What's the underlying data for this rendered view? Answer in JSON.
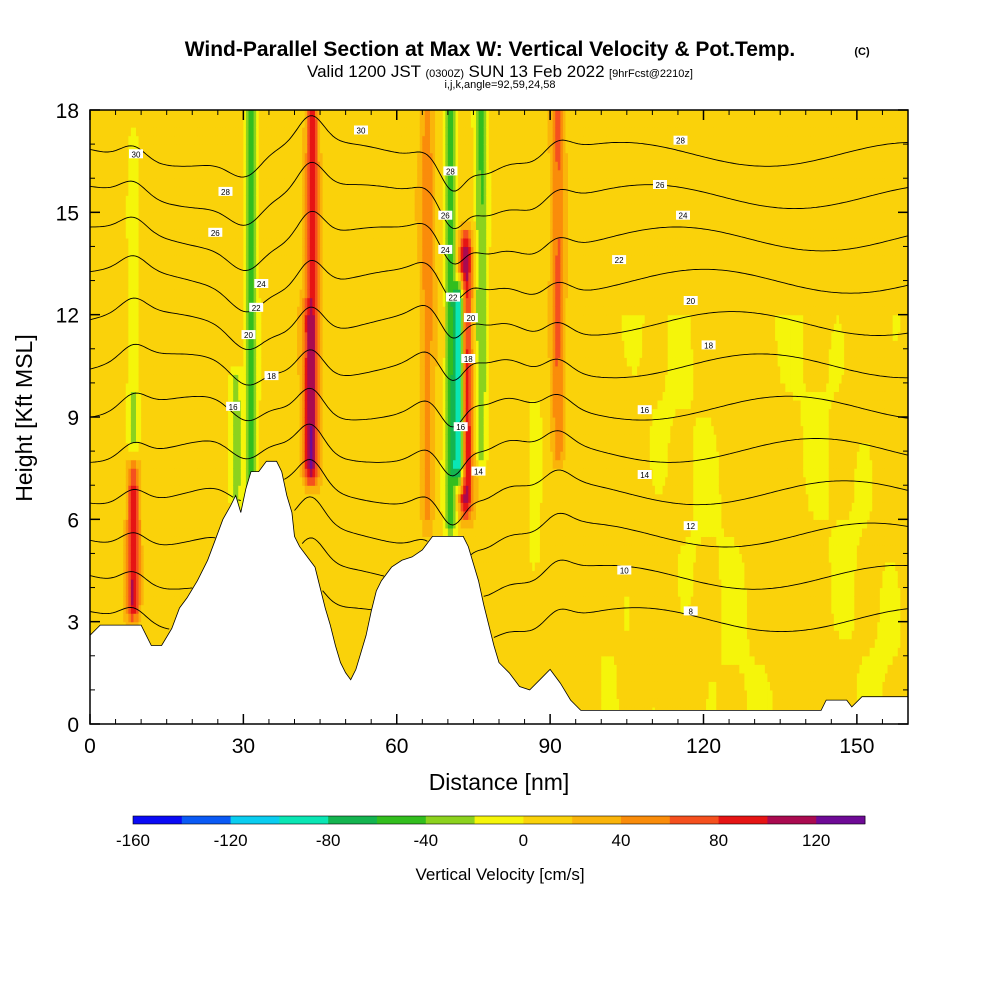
{
  "title": "Wind-Parallel Section at Max W: Vertical Velocity & Pot.Temp.",
  "title_tag": "(C)",
  "subtitle_prefix": "Valid 1200 JST",
  "subtitle_utc": "(0300Z)",
  "subtitle_date": "SUN 13 Feb 2022",
  "subtitle_fcst": "[9hrFcst@2210z]",
  "subtitle_line2": "i,j,k,angle=92,59,24,58",
  "chart_data": {
    "type": "heatmap",
    "xlabel": "Distance [nm]",
    "ylabel": "Height [Kft MSL]",
    "xlim": [
      0,
      160
    ],
    "ylim": [
      0,
      18
    ],
    "x_ticks": [
      0,
      30,
      60,
      90,
      120,
      150
    ],
    "y_ticks": [
      0,
      3,
      6,
      9,
      12,
      15,
      18
    ],
    "colorbar": {
      "label": "Vertical Velocity [cm/s]",
      "range": [
        -160,
        140
      ],
      "step": 20,
      "tick_values": [
        -160,
        -120,
        -80,
        -40,
        0,
        40,
        80,
        120
      ],
      "colors": [
        "#0a0af5",
        "#0a5af5",
        "#0acdf0",
        "#0ae6b4",
        "#14b450",
        "#32be1e",
        "#8cd21e",
        "#f5f50a",
        "#fad20a",
        "#fab40a",
        "#fa8c0a",
        "#f5501e",
        "#e61414",
        "#aa0a50",
        "#6e0a96"
      ]
    },
    "background_value": 10,
    "updraft_bands": [
      {
        "x": 8.5,
        "y_bottom": 3.5,
        "y_top": 7.5,
        "peak": 90
      },
      {
        "x": 43.5,
        "y_bottom": 7.5,
        "y_top": 18,
        "peak": 80
      },
      {
        "x": 73.5,
        "y_bottom": 6.5,
        "y_top": 14,
        "peak": 100
      },
      {
        "x": 91.5,
        "y_bottom": 8,
        "y_top": 18,
        "peak": 50
      },
      {
        "x": 42.5,
        "y_bottom": 7.5,
        "y_top": 12,
        "peak": 40
      },
      {
        "x": 66,
        "y_bottom": 6,
        "y_top": 18,
        "peak": 40
      }
    ],
    "downdraft_bands": [
      {
        "x": 31.5,
        "y_bottom": 7,
        "y_top": 18,
        "peak": -60
      },
      {
        "x": 70.5,
        "y_bottom": 6,
        "y_top": 18,
        "peak": -60
      },
      {
        "x": 72.3,
        "y_bottom": 7.5,
        "y_top": 12.5,
        "peak": -130
      },
      {
        "x": 76.5,
        "y_bottom": 8,
        "y_top": 18,
        "peak": -50
      },
      {
        "x": 8.5,
        "y_bottom": 7.5,
        "y_top": 17,
        "peak": -30
      },
      {
        "x": 28.5,
        "y_bottom": 6.5,
        "y_top": 10,
        "peak": -40
      },
      {
        "x": 87,
        "y_bottom": 5,
        "y_top": 9,
        "peak": -20
      }
    ],
    "isentrope_labels": [
      {
        "x": 9,
        "y": 16.7,
        "text": "30"
      },
      {
        "x": 53,
        "y": 17.4,
        "text": "30"
      },
      {
        "x": 26.5,
        "y": 15.6,
        "text": "28"
      },
      {
        "x": 70.5,
        "y": 16.2,
        "text": "28"
      },
      {
        "x": 115.5,
        "y": 17.1,
        "text": "28"
      },
      {
        "x": 24.5,
        "y": 14.4,
        "text": "26"
      },
      {
        "x": 69.5,
        "y": 14.9,
        "text": "26"
      },
      {
        "x": 111.5,
        "y": 15.8,
        "text": "26"
      },
      {
        "x": 33.5,
        "y": 12.9,
        "text": "24"
      },
      {
        "x": 69.5,
        "y": 13.9,
        "text": "24"
      },
      {
        "x": 116,
        "y": 14.9,
        "text": "24"
      },
      {
        "x": 32.5,
        "y": 12.2,
        "text": "22"
      },
      {
        "x": 71,
        "y": 12.5,
        "text": "22"
      },
      {
        "x": 103.5,
        "y": 13.6,
        "text": "22"
      },
      {
        "x": 31,
        "y": 11.4,
        "text": "20"
      },
      {
        "x": 74.5,
        "y": 11.9,
        "text": "20"
      },
      {
        "x": 117.5,
        "y": 12.4,
        "text": "20"
      },
      {
        "x": 35.5,
        "y": 10.2,
        "text": "18"
      },
      {
        "x": 74,
        "y": 10.7,
        "text": "18"
      },
      {
        "x": 121,
        "y": 11.1,
        "text": "18"
      },
      {
        "x": 28,
        "y": 9.3,
        "text": "16"
      },
      {
        "x": 72.5,
        "y": 8.7,
        "text": "16"
      },
      {
        "x": 108.5,
        "y": 9.2,
        "text": "16"
      },
      {
        "x": 76,
        "y": 7.4,
        "text": "14"
      },
      {
        "x": 108.5,
        "y": 7.3,
        "text": "14"
      },
      {
        "x": 117.5,
        "y": 5.8,
        "text": "12"
      },
      {
        "x": 104.5,
        "y": 4.5,
        "text": "10"
      },
      {
        "x": 117.5,
        "y": 3.3,
        "text": "8"
      }
    ],
    "terrain": [
      [
        0,
        2.6
      ],
      [
        2,
        2.9
      ],
      [
        6,
        2.9
      ],
      [
        10,
        2.9
      ],
      [
        12,
        2.3
      ],
      [
        14,
        2.3
      ],
      [
        16,
        2.8
      ],
      [
        17.5,
        3.4
      ],
      [
        19,
        3.7
      ],
      [
        21,
        4.2
      ],
      [
        23,
        4.8
      ],
      [
        24.5,
        5.4
      ],
      [
        26,
        6.0
      ],
      [
        27.5,
        6.4
      ],
      [
        28.5,
        6.7
      ],
      [
        29.5,
        6.2
      ],
      [
        30.5,
        6.9
      ],
      [
        31.5,
        7.4
      ],
      [
        33,
        7.4
      ],
      [
        34.5,
        7.7
      ],
      [
        36.5,
        7.7
      ],
      [
        37.5,
        7.4
      ],
      [
        38.5,
        6.7
      ],
      [
        39.5,
        6.2
      ],
      [
        40,
        5.5
      ],
      [
        41,
        5.2
      ],
      [
        42,
        5.0
      ],
      [
        44,
        4.6
      ],
      [
        45,
        4.0
      ],
      [
        46,
        3.4
      ],
      [
        47,
        2.9
      ],
      [
        48,
        2.3
      ],
      [
        49,
        1.8
      ],
      [
        50,
        1.5
      ],
      [
        51,
        1.3
      ],
      [
        52,
        1.6
      ],
      [
        53,
        2.1
      ],
      [
        54,
        2.6
      ],
      [
        55,
        3.3
      ],
      [
        56,
        3.9
      ],
      [
        57,
        4.2
      ],
      [
        59,
        4.6
      ],
      [
        61,
        4.8
      ],
      [
        63,
        4.9
      ],
      [
        65,
        5.1
      ],
      [
        67,
        5.5
      ],
      [
        70,
        5.5
      ],
      [
        73,
        5.5
      ],
      [
        74,
        5.2
      ],
      [
        75,
        4.7
      ],
      [
        76,
        4.2
      ],
      [
        77,
        3.5
      ],
      [
        78,
        2.9
      ],
      [
        79,
        2.3
      ],
      [
        80,
        1.8
      ],
      [
        82,
        1.5
      ],
      [
        84,
        1.1
      ],
      [
        86,
        1.0
      ],
      [
        88,
        1.3
      ],
      [
        90,
        1.6
      ],
      [
        92,
        1.2
      ],
      [
        94,
        0.7
      ],
      [
        96,
        0.4
      ],
      [
        143,
        0.4
      ],
      [
        144,
        0.7
      ],
      [
        148,
        0.7
      ],
      [
        149,
        0.5
      ],
      [
        151,
        0.8
      ],
      [
        160,
        0.8
      ]
    ]
  }
}
